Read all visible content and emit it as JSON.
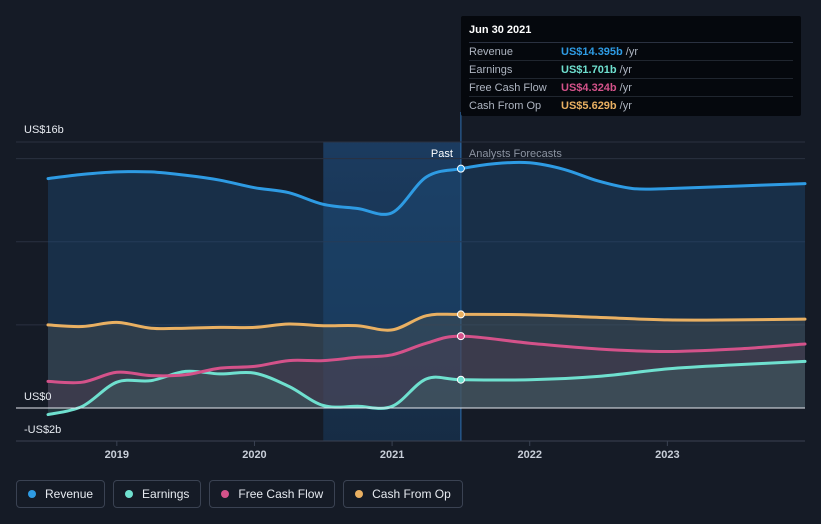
{
  "tooltip": {
    "date": "Jun 30 2021",
    "rows": [
      {
        "name": "Revenue",
        "value": "US$14.395b",
        "unit": "/yr",
        "color": "#2e9be3"
      },
      {
        "name": "Earnings",
        "value": "US$1.701b",
        "unit": "/yr",
        "color": "#6fe0cf"
      },
      {
        "name": "Free Cash Flow",
        "value": "US$4.324b",
        "unit": "/yr",
        "color": "#d4528a"
      },
      {
        "name": "Cash From Op",
        "value": "US$5.629b",
        "unit": "/yr",
        "color": "#e9b062"
      }
    ]
  },
  "legend": [
    {
      "label": "Revenue",
      "color": "#2e9be3"
    },
    {
      "label": "Earnings",
      "color": "#6fe0cf"
    },
    {
      "label": "Free Cash Flow",
      "color": "#d4528a"
    },
    {
      "label": "Cash From Op",
      "color": "#e9b062"
    }
  ],
  "chart_data": {
    "type": "area",
    "y_tick_labels": [
      "US$16b",
      "US$0",
      "-US$2b"
    ],
    "ylim": [
      -2,
      16
    ],
    "xlim": [
      2018.5,
      2024.0
    ],
    "x_tick_labels": [
      "2019",
      "2020",
      "2021",
      "2022",
      "2023"
    ],
    "x_ticks": [
      2019,
      2020,
      2021,
      2022,
      2023
    ],
    "past_label": "Past",
    "forecast_label": "Analysts Forecasts",
    "past_end": 2021.5,
    "highlight_start": 2020.5,
    "series": [
      {
        "name": "Revenue",
        "color": "#2e9be3",
        "x": [
          2018.5,
          2018.75,
          2019.0,
          2019.25,
          2019.5,
          2019.75,
          2020.0,
          2020.25,
          2020.5,
          2020.75,
          2021.0,
          2021.25,
          2021.5,
          2021.75,
          2022.0,
          2022.25,
          2022.5,
          2022.75,
          2023.0,
          2023.5,
          2024.0
        ],
        "y": [
          13.8,
          14.05,
          14.2,
          14.2,
          14.0,
          13.7,
          13.25,
          12.95,
          12.25,
          12.0,
          11.75,
          13.9,
          14.395,
          14.7,
          14.75,
          14.35,
          13.65,
          13.2,
          13.2,
          13.35,
          13.5
        ]
      },
      {
        "name": "Earnings",
        "color": "#6fe0cf",
        "x": [
          2018.5,
          2018.75,
          2019.0,
          2019.25,
          2019.5,
          2019.75,
          2020.0,
          2020.25,
          2020.5,
          2020.75,
          2021.0,
          2021.25,
          2021.5,
          2022.0,
          2022.5,
          2023.0,
          2023.5,
          2024.0
        ],
        "y": [
          -0.4,
          0.1,
          1.55,
          1.65,
          2.2,
          2.05,
          2.1,
          1.3,
          0.15,
          0.1,
          0.1,
          1.75,
          1.701,
          1.7,
          1.9,
          2.35,
          2.6,
          2.8
        ]
      },
      {
        "name": "Free Cash Flow",
        "color": "#d4528a",
        "x": [
          2018.5,
          2018.75,
          2019.0,
          2019.25,
          2019.5,
          2019.75,
          2020.0,
          2020.25,
          2020.5,
          2020.75,
          2021.0,
          2021.25,
          2021.5,
          2022.0,
          2022.5,
          2023.0,
          2023.5,
          2024.0
        ],
        "y": [
          1.6,
          1.55,
          2.15,
          1.95,
          2.0,
          2.4,
          2.5,
          2.85,
          2.85,
          3.05,
          3.2,
          3.9,
          4.324,
          3.9,
          3.55,
          3.4,
          3.55,
          3.85
        ]
      },
      {
        "name": "Cash From Op",
        "color": "#e9b062",
        "x": [
          2018.5,
          2018.75,
          2019.0,
          2019.25,
          2019.5,
          2019.75,
          2020.0,
          2020.25,
          2020.5,
          2020.75,
          2021.0,
          2021.25,
          2021.5,
          2022.0,
          2022.5,
          2023.0,
          2023.5,
          2024.0
        ],
        "y": [
          5.0,
          4.9,
          5.15,
          4.8,
          4.8,
          4.85,
          4.85,
          5.05,
          4.95,
          4.95,
          4.7,
          5.55,
          5.629,
          5.6,
          5.45,
          5.3,
          5.3,
          5.35
        ]
      }
    ]
  }
}
